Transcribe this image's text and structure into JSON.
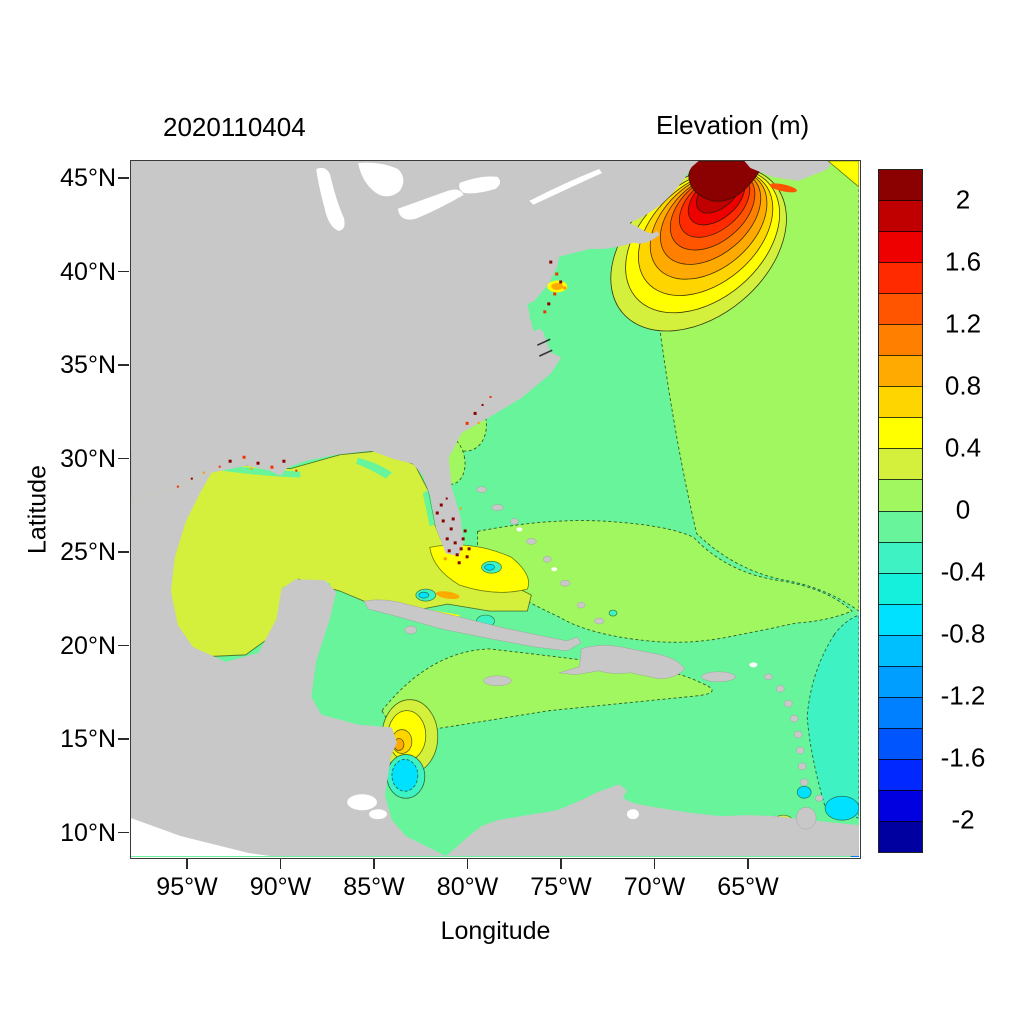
{
  "header": {
    "left_title": "2020110404",
    "right_title": "Elevation (m)"
  },
  "axes": {
    "x_label": "Longitude",
    "y_label": "Latitude",
    "x_ticks": [
      "95°W",
      "90°W",
      "85°W",
      "80°W",
      "75°W",
      "70°W",
      "65°W"
    ],
    "y_ticks": [
      "45°N",
      "40°N",
      "35°N",
      "30°N",
      "25°N",
      "20°N",
      "15°N",
      "10°N"
    ]
  },
  "colorbar": {
    "labels": [
      "2",
      "1.6",
      "1.2",
      "0.8",
      "0.4",
      "0",
      "-0.4",
      "-0.8",
      "-1.2",
      "-1.6",
      "-2"
    ],
    "colors": [
      "#8B0000",
      "#C00000",
      "#EE0000",
      "#FF2A00",
      "#FF5500",
      "#FF8000",
      "#FFAA00",
      "#FFD500",
      "#FFFF00",
      "#D4F03C",
      "#A0F75F",
      "#68F49A",
      "#3EF2C3",
      "#14F0DC",
      "#00E0FF",
      "#00BFFF",
      "#009FFF",
      "#007FFF",
      "#0055FF",
      "#0028FF",
      "#0000E0",
      "#0000A0"
    ],
    "value_min": -2.2,
    "value_max": 2.2,
    "step": 0.2
  },
  "map_colors": {
    "land": "#C8C8C8",
    "out_of_domain": "#FFFFFF",
    "contour_lines": "#1A2B00"
  },
  "chart_data": {
    "type": "heatmap",
    "title": "2020110404",
    "colorbar_title": "Elevation (m)",
    "xlabel": "Longitude",
    "ylabel": "Latitude",
    "xlim": [
      "98°W",
      "60°W"
    ],
    "ylim": [
      "8.5°N",
      "46°N"
    ],
    "x_ticks": [
      "95°W",
      "90°W",
      "85°W",
      "80°W",
      "75°W",
      "70°W",
      "65°W"
    ],
    "y_ticks": [
      "45°N",
      "40°N",
      "35°N",
      "30°N",
      "25°N",
      "20°N",
      "15°N",
      "10°N"
    ],
    "units": "m",
    "contour_interval": 0.2,
    "colorbar_ticks": [
      2,
      1.6,
      1.2,
      0.8,
      0.4,
      0,
      -0.4,
      -0.8,
      -1.2,
      -1.6,
      -2
    ],
    "grid": false,
    "legend_position": "right",
    "features": [
      {
        "region": "Bay of Fundy / Gulf of Maine",
        "lon": "70W-64W",
        "lat": "41N-45.5N",
        "elevation_m": "maximum > 2 at head of Bay of Fundy, concentric 0.2 m contour rings decreasing outward to 0.2"
      },
      {
        "region": "Gulf of Mexico",
        "elevation_m": "0.2 to 0.4, nearly uniform"
      },
      {
        "region": "central western North Atlantic",
        "elevation_m": "-0.2 to 0"
      },
      {
        "region": "northeastern Atlantic corner and southern Atlantic / Bahamas band",
        "elevation_m": "0 to 0.2"
      },
      {
        "region": "Florida Straits and north coast of Cuba",
        "elevation_m": "0.4 to 0.6 with small 0.6-0.8 slivers"
      },
      {
        "region": "central Caribbean band (Cayman Sea, Jamaica, north Hispaniola)",
        "elevation_m": "0 to 0.2"
      },
      {
        "region": "southwest Caribbean body",
        "elevation_m": "-0.2 to 0"
      },
      {
        "region": "Nicaragua coast dipole",
        "elevation_m": "+0.6 to +1.0 northern lobe, -0.6 to -0.4 southern lobe"
      },
      {
        "region": "Atlantic east of Lesser Antilles",
        "elevation_m": "-0.4 to -0.2"
      },
      {
        "region": "near Trinidad / southeast corner",
        "elevation_m": "-0.8 to -0.4"
      },
      {
        "region": "scattered coastal wet-dry cells (Florida, Louisiana, mid-Atlantic)",
        "elevation_m": "isolated dots > 1.6"
      },
      {
        "region": "land",
        "elevation_m": "masked gray"
      },
      {
        "region": "Great Lakes and Pacific corner",
        "elevation_m": "outside model domain (white)"
      }
    ]
  }
}
